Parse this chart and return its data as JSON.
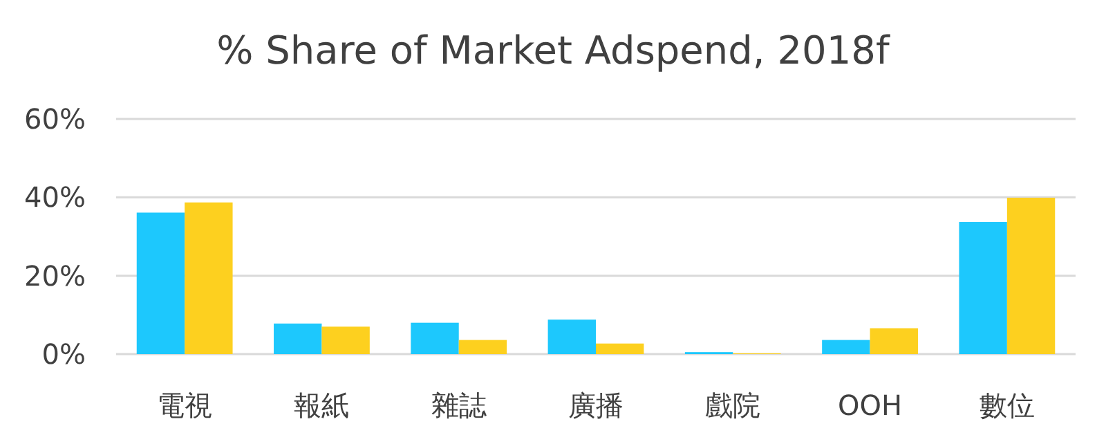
{
  "chart_data": {
    "type": "bar",
    "title": "% Share of Market Adspend, 2018f",
    "categories": [
      "電視",
      "報紙",
      "雜誌",
      "廣播",
      "戲院",
      "OOH",
      "數位"
    ],
    "series": [
      {
        "color": "#1dc8fd",
        "values": [
          36.1,
          7.8,
          8.0,
          8.8,
          0.5,
          3.6,
          33.7
        ]
      },
      {
        "color": "#fdd01f",
        "values": [
          38.7,
          7.0,
          3.6,
          2.7,
          0.2,
          6.6,
          39.9
        ]
      }
    ],
    "ylim": [
      0,
      60
    ],
    "yticks": [
      {
        "value": 0,
        "label": "0%"
      },
      {
        "value": 20,
        "label": "20%"
      },
      {
        "value": 40,
        "label": "40%"
      },
      {
        "value": 60,
        "label": "60%"
      }
    ],
    "grid": "y"
  }
}
